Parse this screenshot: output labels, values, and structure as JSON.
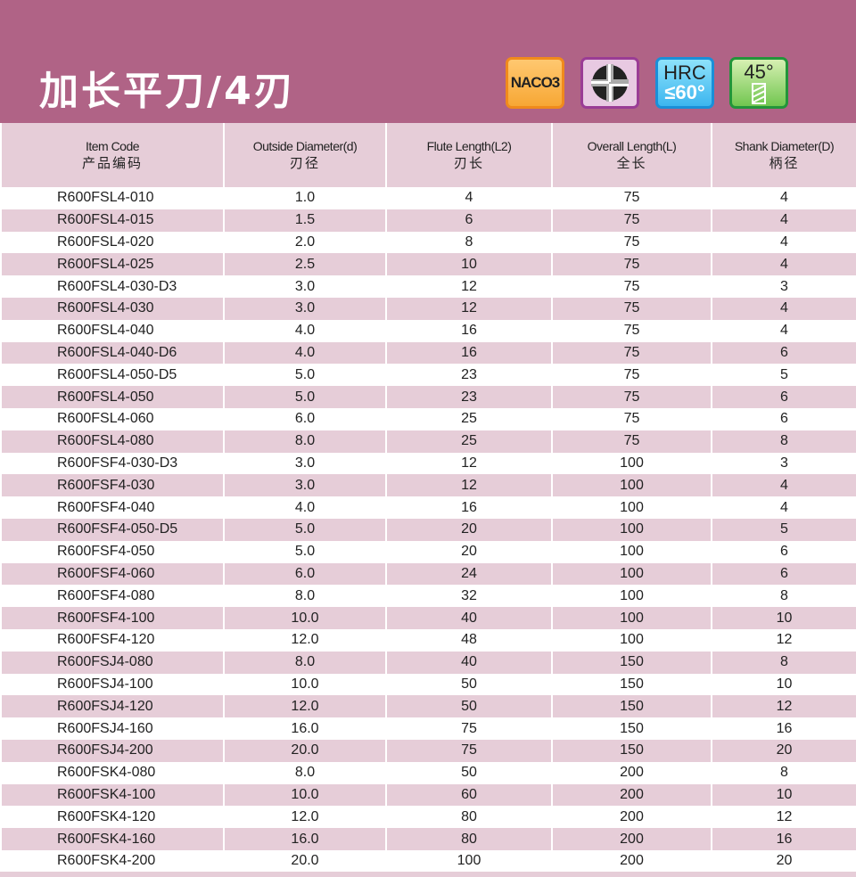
{
  "title": "加长平刀/4刃",
  "badges": {
    "naco": "NACO3",
    "hrc_top": "HRC",
    "hrc_bottom": "≤60°",
    "helix": "45°",
    "flute_icon": "four-flute-cross-section-icon",
    "helix_icon": "helix-angle-icon"
  },
  "colors": {
    "banner": "#b06386",
    "row_alt": "#e6cdd8"
  },
  "headers": [
    {
      "en": "Item Code",
      "zh": "产品编码"
    },
    {
      "en": "Outside Diameter(d)",
      "zh": "刃径"
    },
    {
      "en": "Flute Length(L2)",
      "zh": "刃长"
    },
    {
      "en": "Overall Length(L)",
      "zh": "全长"
    },
    {
      "en": "Shank Diameter(D)",
      "zh": "柄径"
    }
  ],
  "rows": [
    [
      "R600FSL4-010",
      "1.0",
      "4",
      "75",
      "4"
    ],
    [
      "R600FSL4-015",
      "1.5",
      "6",
      "75",
      "4"
    ],
    [
      "R600FSL4-020",
      "2.0",
      "8",
      "75",
      "4"
    ],
    [
      "R600FSL4-025",
      "2.5",
      "10",
      "75",
      "4"
    ],
    [
      "R600FSL4-030-D3",
      "3.0",
      "12",
      "75",
      "3"
    ],
    [
      "R600FSL4-030",
      "3.0",
      "12",
      "75",
      "4"
    ],
    [
      "R600FSL4-040",
      "4.0",
      "16",
      "75",
      "4"
    ],
    [
      "R600FSL4-040-D6",
      "4.0",
      "16",
      "75",
      "6"
    ],
    [
      "R600FSL4-050-D5",
      "5.0",
      "23",
      "75",
      "5"
    ],
    [
      "R600FSL4-050",
      "5.0",
      "23",
      "75",
      "6"
    ],
    [
      "R600FSL4-060",
      "6.0",
      "25",
      "75",
      "6"
    ],
    [
      "R600FSL4-080",
      "8.0",
      "25",
      "75",
      "8"
    ],
    [
      "R600FSF4-030-D3",
      "3.0",
      "12",
      "100",
      "3"
    ],
    [
      "R600FSF4-030",
      "3.0",
      "12",
      "100",
      "4"
    ],
    [
      "R600FSF4-040",
      "4.0",
      "16",
      "100",
      "4"
    ],
    [
      "R600FSF4-050-D5",
      "5.0",
      "20",
      "100",
      "5"
    ],
    [
      "R600FSF4-050",
      "5.0",
      "20",
      "100",
      "6"
    ],
    [
      "R600FSF4-060",
      "6.0",
      "24",
      "100",
      "6"
    ],
    [
      "R600FSF4-080",
      "8.0",
      "32",
      "100",
      "8"
    ],
    [
      "R600FSF4-100",
      "10.0",
      "40",
      "100",
      "10"
    ],
    [
      "R600FSF4-120",
      "12.0",
      "48",
      "100",
      "12"
    ],
    [
      "R600FSJ4-080",
      "8.0",
      "40",
      "150",
      "8"
    ],
    [
      "R600FSJ4-100",
      "10.0",
      "50",
      "150",
      "10"
    ],
    [
      "R600FSJ4-120",
      "12.0",
      "50",
      "150",
      "12"
    ],
    [
      "R600FSJ4-160",
      "16.0",
      "75",
      "150",
      "16"
    ],
    [
      "R600FSJ4-200",
      "20.0",
      "75",
      "150",
      "20"
    ],
    [
      "R600FSK4-080",
      "8.0",
      "50",
      "200",
      "8"
    ],
    [
      "R600FSK4-100",
      "10.0",
      "60",
      "200",
      "10"
    ],
    [
      "R600FSK4-120",
      "12.0",
      "80",
      "200",
      "12"
    ],
    [
      "R600FSK4-160",
      "16.0",
      "80",
      "200",
      "16"
    ],
    [
      "R600FSK4-200",
      "20.0",
      "100",
      "200",
      "20"
    ]
  ]
}
